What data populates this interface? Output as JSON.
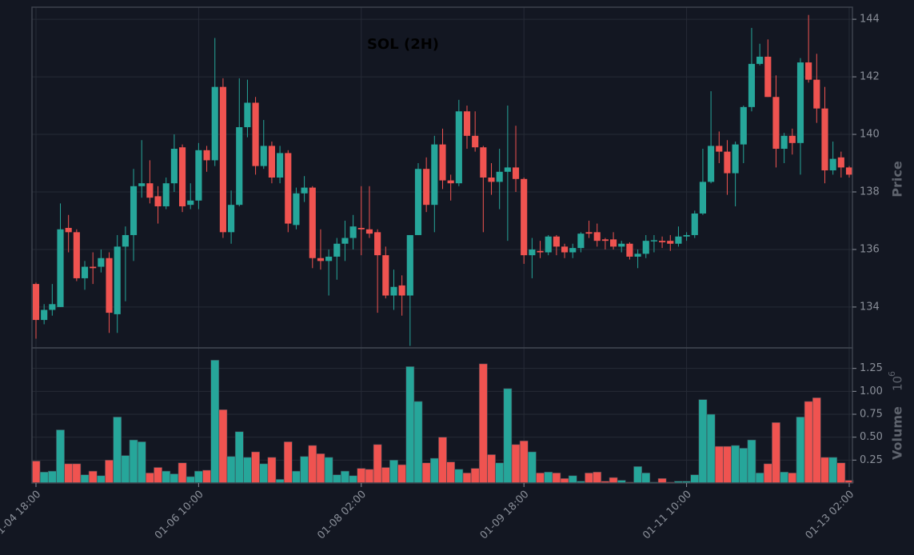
{
  "chart_data": {
    "type": "candlestick",
    "title": "SOL (2H)",
    "ylabel": "Price",
    "y2label": "Volume",
    "volume_offset_base": "10",
    "volume_offset_exponent": "6",
    "up_color": "#26a69a",
    "down_color": "#ef5350",
    "grid": true,
    "categories": [
      "01-04 18:00",
      null,
      null,
      null,
      null,
      null,
      null,
      null,
      null,
      null,
      null,
      null,
      null,
      null,
      null,
      null,
      null,
      null,
      null,
      null,
      "01-06 10:00",
      null,
      null,
      null,
      null,
      null,
      null,
      null,
      null,
      null,
      null,
      null,
      null,
      null,
      null,
      null,
      null,
      null,
      null,
      null,
      "01-08 02:00",
      null,
      null,
      null,
      null,
      null,
      null,
      null,
      null,
      null,
      null,
      null,
      null,
      null,
      null,
      null,
      null,
      null,
      null,
      null,
      "01-09 18:00",
      null,
      null,
      null,
      null,
      null,
      null,
      null,
      null,
      null,
      null,
      null,
      null,
      null,
      null,
      null,
      null,
      null,
      null,
      null,
      "01-11 10:00",
      null,
      null,
      null,
      null,
      null,
      null,
      null,
      null,
      null,
      null,
      null,
      null,
      null,
      null,
      null,
      null,
      null,
      null,
      null,
      "01-13 02:00"
    ],
    "open": [
      134.8,
      133.55,
      133.9,
      134.0,
      136.75,
      136.6,
      135.0,
      135.4,
      135.4,
      135.7,
      133.75,
      136.1,
      136.5,
      138.2,
      138.3,
      137.85,
      137.5,
      138.3,
      139.55,
      137.55,
      137.7,
      139.45,
      139.1,
      141.65,
      136.6,
      137.55,
      140.25,
      141.1,
      138.9,
      139.6,
      138.5,
      139.35,
      136.85,
      137.95,
      138.15,
      135.7,
      135.6,
      135.75,
      136.2,
      136.4,
      136.75,
      136.7,
      136.6,
      135.8,
      134.4,
      134.75,
      134.4,
      136.5,
      138.8,
      137.55,
      139.65,
      138.4,
      138.3,
      140.8,
      139.95,
      139.55,
      138.5,
      138.35,
      138.7,
      138.85,
      138.45,
      135.8,
      135.95,
      135.9,
      136.45,
      136.1,
      135.9,
      136.05,
      136.6,
      136.6,
      136.35,
      136.35,
      136.1,
      136.2,
      135.75,
      135.85,
      136.28,
      136.3,
      136.3,
      136.2,
      136.45,
      136.5,
      137.25,
      138.35,
      139.6,
      139.4,
      138.65,
      139.65,
      140.95,
      142.45,
      142.7,
      141.3,
      139.5,
      139.95,
      139.7,
      142.5,
      141.9,
      140.9,
      138.75,
      139.2,
      138.85
    ],
    "high": [
      134.85,
      134.1,
      134.8,
      137.6,
      137.2,
      136.7,
      135.6,
      135.9,
      136.0,
      135.9,
      136.5,
      136.8,
      138.8,
      139.8,
      139.1,
      138.2,
      138.5,
      140.0,
      139.65,
      138.3,
      139.7,
      139.6,
      143.35,
      141.95,
      138.05,
      141.95,
      141.9,
      141.3,
      140.5,
      139.75,
      139.6,
      139.45,
      138.15,
      138.55,
      138.2,
      136.7,
      136.0,
      136.4,
      137.0,
      137.2,
      138.2,
      138.2,
      136.7,
      136.1,
      135.3,
      135.1,
      136.5,
      139.0,
      139.2,
      139.95,
      140.2,
      138.6,
      141.2,
      141.0,
      140.8,
      139.6,
      139.0,
      139.5,
      141.0,
      140.3,
      138.5,
      136.4,
      136.3,
      136.5,
      136.5,
      136.2,
      136.2,
      136.6,
      137.0,
      136.9,
      136.4,
      136.6,
      136.3,
      136.25,
      136.0,
      136.5,
      136.5,
      136.45,
      136.5,
      136.8,
      136.6,
      137.35,
      139.5,
      141.5,
      140.1,
      139.8,
      139.75,
      141.0,
      143.7,
      143.15,
      143.3,
      142.05,
      140.05,
      140.2,
      142.65,
      144.15,
      142.8,
      141.65,
      139.75,
      139.4,
      138.9
    ],
    "low": [
      132.9,
      133.4,
      133.7,
      134.0,
      135.9,
      134.9,
      134.6,
      134.8,
      135.2,
      133.1,
      133.1,
      134.2,
      135.6,
      137.8,
      137.6,
      136.9,
      137.4,
      138.0,
      137.3,
      137.4,
      137.4,
      138.7,
      138.9,
      136.4,
      136.2,
      137.5,
      139.9,
      138.6,
      138.8,
      138.3,
      138.3,
      136.6,
      136.7,
      137.65,
      135.35,
      135.3,
      134.4,
      134.95,
      135.6,
      136.0,
      135.8,
      136.4,
      133.8,
      134.3,
      133.9,
      133.7,
      132.65,
      136.5,
      137.3,
      136.6,
      138.1,
      137.7,
      138.2,
      139.5,
      139.4,
      136.6,
      137.9,
      137.4,
      136.3,
      138.0,
      135.5,
      135.0,
      135.7,
      135.8,
      135.8,
      135.7,
      135.7,
      135.9,
      136.4,
      136.1,
      136.0,
      136.0,
      135.9,
      135.65,
      135.35,
      135.7,
      135.9,
      136.05,
      135.95,
      136.1,
      136.3,
      136.4,
      137.2,
      138.3,
      139.0,
      137.9,
      137.5,
      139.0,
      140.8,
      142.4,
      141.3,
      138.85,
      139.0,
      139.3,
      138.6,
      141.8,
      140.4,
      138.3,
      138.6,
      138.5,
      138.5
    ],
    "close": [
      133.55,
      133.9,
      134.1,
      136.7,
      136.6,
      135.0,
      135.4,
      135.35,
      135.7,
      133.8,
      136.1,
      136.5,
      138.2,
      138.3,
      137.8,
      137.5,
      138.3,
      139.5,
      137.5,
      137.7,
      139.45,
      139.1,
      141.65,
      136.6,
      137.55,
      140.25,
      141.1,
      138.9,
      139.6,
      138.5,
      139.35,
      136.9,
      137.95,
      138.15,
      135.7,
      135.6,
      135.75,
      136.2,
      136.4,
      136.8,
      136.7,
      136.55,
      135.8,
      134.4,
      134.7,
      134.4,
      136.5,
      138.8,
      137.55,
      139.65,
      138.4,
      138.3,
      140.8,
      139.95,
      139.55,
      138.5,
      138.35,
      138.7,
      138.85,
      138.45,
      135.8,
      136.0,
      135.9,
      136.45,
      136.1,
      135.9,
      136.05,
      136.55,
      136.55,
      136.3,
      136.3,
      136.1,
      136.2,
      135.75,
      135.85,
      136.3,
      136.32,
      136.25,
      136.2,
      136.45,
      136.5,
      137.25,
      138.35,
      139.6,
      139.4,
      138.65,
      139.65,
      140.95,
      142.45,
      142.7,
      141.3,
      139.5,
      139.95,
      139.7,
      142.5,
      141.9,
      140.9,
      138.75,
      139.15,
      138.85,
      138.6
    ],
    "volume": [
      0.24,
      0.12,
      0.13,
      0.58,
      0.21,
      0.21,
      0.09,
      0.13,
      0.08,
      0.25,
      0.72,
      0.3,
      0.47,
      0.45,
      0.11,
      0.17,
      0.13,
      0.1,
      0.22,
      0.07,
      0.13,
      0.14,
      1.34,
      0.8,
      0.29,
      0.56,
      0.28,
      0.34,
      0.21,
      0.28,
      0.04,
      0.45,
      0.13,
      0.29,
      0.41,
      0.32,
      0.28,
      0.09,
      0.13,
      0.08,
      0.16,
      0.15,
      0.42,
      0.17,
      0.25,
      0.2,
      1.27,
      0.89,
      0.22,
      0.27,
      0.5,
      0.23,
      0.15,
      0.11,
      0.16,
      1.3,
      0.31,
      0.22,
      1.03,
      0.42,
      0.46,
      0.34,
      0.11,
      0.12,
      0.11,
      0.05,
      0.08,
      0.02,
      0.11,
      0.12,
      0.02,
      0.06,
      0.03,
      0.01,
      0.18,
      0.11,
      0.01,
      0.05,
      0.01,
      0.02,
      0.02,
      0.09,
      0.91,
      0.75,
      0.4,
      0.4,
      0.41,
      0.38,
      0.47,
      0.11,
      0.21,
      0.66,
      0.12,
      0.11,
      0.72,
      0.89,
      0.93,
      0.28,
      0.28,
      0.22,
      0.03
    ],
    "ylim": [
      132.58,
      144.42
    ],
    "yticks": [
      134,
      136,
      138,
      140,
      142,
      144
    ],
    "y2lim": [
      0,
      1.474
    ],
    "y2ticks": [
      0.25,
      {
        "value": 0.5,
        "label": "0.50"
      },
      0.75,
      {
        "value": 1.0,
        "label": "1.00"
      },
      1.25
    ]
  }
}
